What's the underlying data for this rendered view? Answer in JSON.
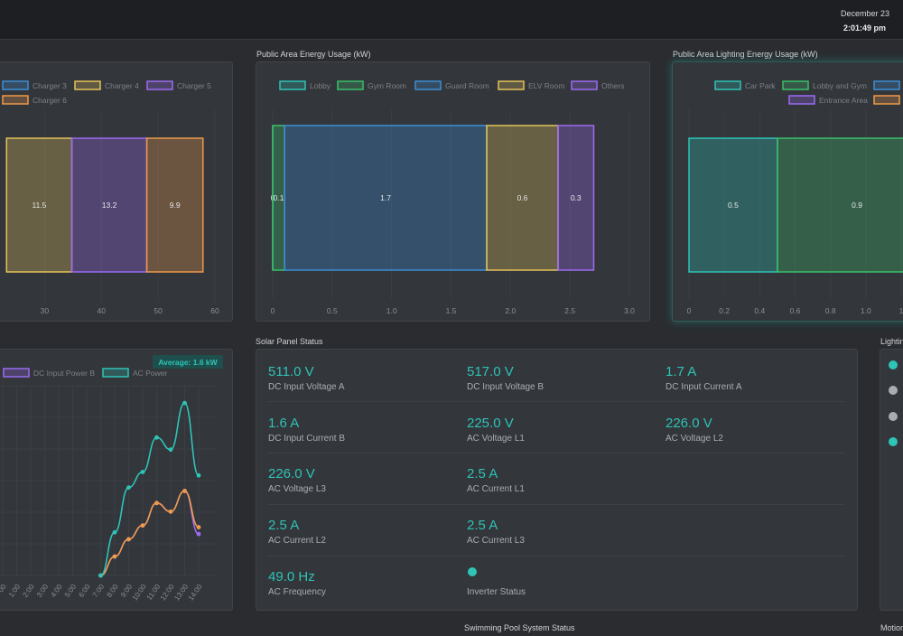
{
  "header": {
    "date": "December 23",
    "time": "2:01:49 pm"
  },
  "sections": {
    "public_area_energy": "Public Area Energy Usage (kW)",
    "public_lighting_energy": "Public Area Lighting Energy Usage (kW)",
    "solar_panel_status": "Solar Panel Status",
    "lighting_partial": "Lightin",
    "swimming_pool": "Swimming Pool System Status",
    "motion_partial": "Motion"
  },
  "colors": {
    "teal": "#2ec4b6",
    "green": "#3bbf6b",
    "blue": "#3d8fd6",
    "yellow": "#e5c25a",
    "purple": "#9b6bf2",
    "orange": "#ee9a4b"
  },
  "chart_data": [
    {
      "type": "bar",
      "orientation": "horizontal-stacked",
      "title": "",
      "legend": [
        "Charger 3",
        "Charger 4",
        "Charger 5",
        "Charger 6"
      ],
      "legend_placement": "top",
      "series": [
        {
          "name": "Charger 4",
          "start": 23.3,
          "value": 11.5,
          "color": "#e5c25a"
        },
        {
          "name": "Charger 5",
          "start": 34.8,
          "value": 13.2,
          "color": "#9b6bf2"
        },
        {
          "name": "Charger 6",
          "start": 48.0,
          "value": 9.9,
          "color": "#ee9a4b"
        }
      ],
      "x_ticks": [
        "30",
        "40",
        "50",
        "60"
      ],
      "xlim": [
        22.3,
        60
      ],
      "grid": true
    },
    {
      "type": "bar",
      "orientation": "horizontal-stacked",
      "title": "Public Area Energy Usage (kW)",
      "legend": [
        "Lobby",
        "Gym Room",
        "Guard Room",
        "ELV Room",
        "Others"
      ],
      "legend_placement": "top",
      "series": [
        {
          "name": "Lobby",
          "value": 0.0,
          "color": "#2ec4b6"
        },
        {
          "name": "Gym Room",
          "value": 0.1,
          "color": "#3bbf6b"
        },
        {
          "name": "Guard Room",
          "value": 1.7,
          "color": "#3d8fd6"
        },
        {
          "name": "ELV Room",
          "value": 0.6,
          "color": "#e5c25a"
        },
        {
          "name": "Others",
          "value": 0.3,
          "color": "#9b6bf2"
        }
      ],
      "labels": [
        "0",
        "0.1",
        "1.7",
        "0.6",
        "0.3"
      ],
      "x_ticks": [
        "0",
        "0.5",
        "1.0",
        "1.5",
        "2.0",
        "2.5",
        "3.0"
      ],
      "xlim": [
        0,
        3.0
      ],
      "grid": true
    },
    {
      "type": "bar",
      "orientation": "horizontal-stacked",
      "title": "Public Area Lighting Energy Usage (kW)",
      "legend": [
        "Car Park",
        "Lobby and Gym",
        "",
        "Entrance Area"
      ],
      "legend_placement": "top",
      "series": [
        {
          "name": "Car Park",
          "value": 0.5,
          "color": "#2ec4b6"
        },
        {
          "name": "Lobby and Gym",
          "value": 0.9,
          "color": "#3bbf6b"
        }
      ],
      "x_ticks": [
        "0",
        "0.2",
        "0.4",
        "0.6",
        "0.8",
        "1.0",
        "1"
      ],
      "xlim": [
        0,
        1.2
      ],
      "grid": true
    },
    {
      "type": "line",
      "title": "",
      "legend": [
        "DC Input Power B",
        "AC Power"
      ],
      "legend_placement": "top",
      "badge": "Average: 1.6 kW",
      "x": [
        "00",
        "1:00",
        "2:00",
        "3:00",
        "4:00",
        "5:00",
        "6:00",
        "7:00",
        "8:00",
        "9:00",
        "10:00",
        "11:00",
        "12:00",
        "13:00",
        "14:00"
      ],
      "series": [
        {
          "name": "AC Power",
          "color": "#2ec4b6",
          "values": [
            null,
            null,
            null,
            null,
            null,
            null,
            null,
            0.0,
            2.5,
            5.1,
            6.0,
            8.0,
            7.3,
            10.0,
            5.8
          ]
        },
        {
          "name": "DC Input Power B",
          "color": "#9b6bf2",
          "values": [
            null,
            null,
            null,
            null,
            null,
            null,
            null,
            0.0,
            1.1,
            2.1,
            2.9,
            4.2,
            3.7,
            4.9,
            2.4
          ]
        },
        {
          "name": "",
          "color": "#ee9a4b",
          "values": [
            null,
            null,
            null,
            null,
            null,
            null,
            null,
            0.0,
            1.1,
            2.1,
            2.9,
            4.2,
            3.7,
            4.9,
            2.8
          ]
        }
      ],
      "ylim": [
        0,
        11
      ],
      "grid": true
    }
  ],
  "solar": [
    {
      "value": "511.0 V",
      "label": "DC Input Voltage A"
    },
    {
      "value": "517.0 V",
      "label": "DC Input Voltage B"
    },
    {
      "value": "1.7 A",
      "label": "DC Input Current A"
    },
    {
      "value": "1.6 A",
      "label": "DC Input Current B"
    },
    {
      "value": "225.0 V",
      "label": "AC Voltage L1"
    },
    {
      "value": "226.0 V",
      "label": "AC Voltage L2"
    },
    {
      "value": "226.0 V",
      "label": "AC Voltage L3"
    },
    {
      "value": "2.5 A",
      "label": "AC Current L1"
    },
    {
      "value": "2.5 A",
      "label": "AC Current L2"
    },
    {
      "value": "2.5 A",
      "label": "AC Current L3"
    },
    {
      "value": "49.0 Hz",
      "label": "AC Frequency"
    },
    {
      "value": "",
      "label": "Inverter Status",
      "status": "on"
    }
  ]
}
